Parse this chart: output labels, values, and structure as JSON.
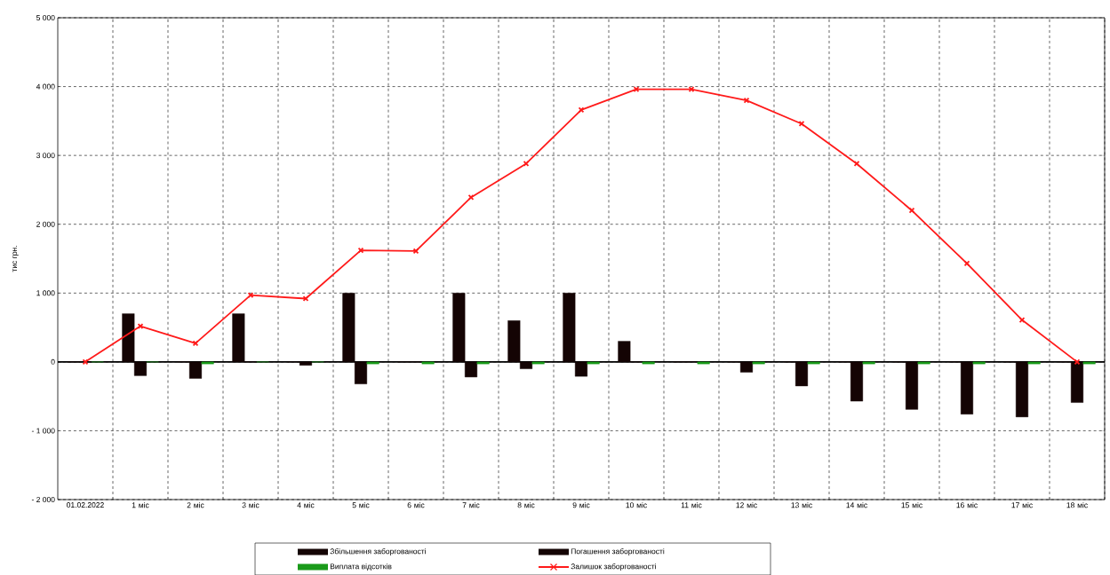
{
  "chart_data": {
    "type": "bar",
    "ylabel": "тис грн.",
    "categories": [
      "01.02.2022",
      "1 міс",
      "2 міс",
      "3 міс",
      "4 міс",
      "5 міс",
      "6 міс",
      "7 міс",
      "8 міс",
      "9 міс",
      "10 міс",
      "11 міс",
      "12 міс",
      "13 міс",
      "14 міс",
      "15 міс",
      "16 міс",
      "17 міс",
      "18 міс"
    ],
    "series": [
      {
        "name": "Збільшення заборгованості",
        "color": "#140404",
        "values": [
          0,
          700,
          0,
          700,
          0,
          1000,
          0,
          1000,
          600,
          1000,
          300,
          0,
          0,
          0,
          0,
          0,
          0,
          0,
          0
        ]
      },
      {
        "name": "Погашення заборгованості",
        "color": "#140404",
        "values": [
          0,
          -200,
          -240,
          0,
          -50,
          -320,
          0,
          -220,
          -100,
          -210,
          0,
          0,
          -150,
          -350,
          -570,
          -690,
          -760,
          -800,
          -590
        ]
      },
      {
        "name": "Виплата відсотків",
        "color": "#1a9a1a",
        "values": [
          0,
          0,
          -30,
          0,
          0,
          -30,
          -30,
          -30,
          -30,
          -30,
          -30,
          -30,
          -30,
          -30,
          -30,
          -30,
          -30,
          -30,
          -30
        ]
      },
      {
        "name": "Залишок заборгованості",
        "type": "line",
        "color": "#ff1a1a",
        "marker": "cross",
        "line_style": "solid",
        "values": [
          0,
          520,
          270,
          970,
          920,
          1620,
          1610,
          2390,
          2880,
          3660,
          3960,
          3960,
          3800,
          3460,
          2880,
          2200,
          1430,
          610,
          0
        ]
      }
    ],
    "ylim": [
      -2000,
      5000
    ],
    "yticks": [
      {
        "value": -2000,
        "label": "- 2 000"
      },
      {
        "value": -1000,
        "label": "- 1 000"
      },
      0,
      {
        "value": 1000,
        "label": "1 000"
      },
      {
        "value": 2000,
        "label": "2 000"
      },
      {
        "value": 3000,
        "label": "3 000"
      },
      {
        "value": 4000,
        "label": "4 000"
      },
      {
        "value": 5000,
        "label": "5 000"
      }
    ],
    "grid": true,
    "legend": "bottom"
  }
}
